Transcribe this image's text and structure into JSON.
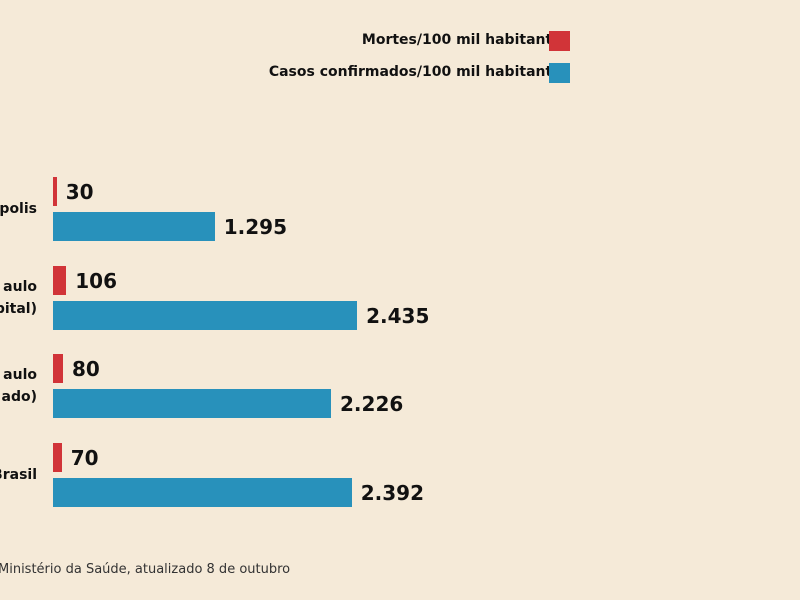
{
  "chart_data": {
    "type": "bar",
    "orientation": "horizontal",
    "categories": [
      "polis",
      "aulo\npital)",
      "aulo\nado)",
      "Brasil"
    ],
    "series": [
      {
        "name": "Mortes/100 mil habitantes",
        "color": "#d13438",
        "values": [
          30,
          106,
          80,
          70
        ],
        "labels": [
          "30",
          "106",
          "80",
          "70"
        ]
      },
      {
        "name": "Casos confirmados/100 mil habitantes",
        "color": "#2891bb",
        "values": [
          1295,
          2435,
          2226,
          2392
        ],
        "labels": [
          "1.295",
          "2.435",
          "2.226",
          "2.392"
        ]
      }
    ],
    "legend_position": "top-right",
    "grid": false
  },
  "source": "Ministério da Saúde, atualizado 8 de outubro"
}
